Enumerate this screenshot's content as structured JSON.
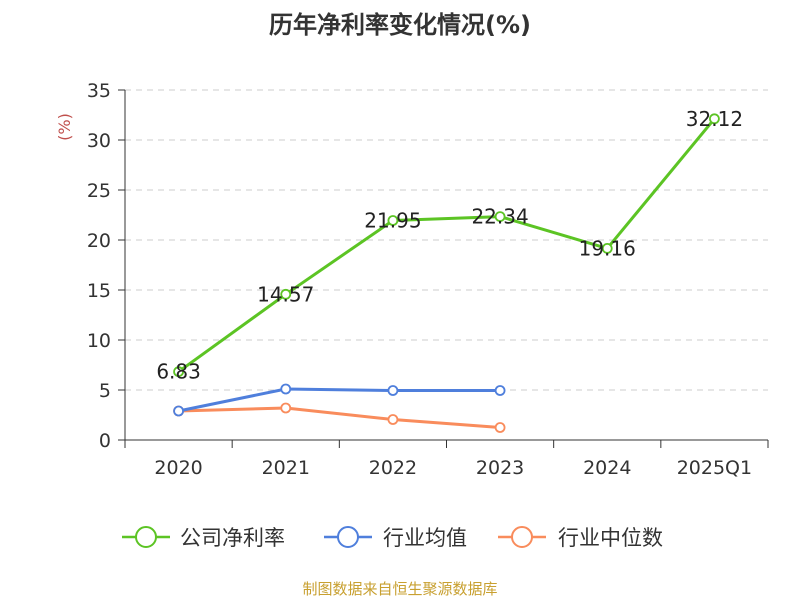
{
  "chart_data": {
    "type": "line",
    "title": "历年净利率变化情况(%)",
    "ylabel": "(%)",
    "xlabel": "",
    "categories": [
      "2020",
      "2021",
      "2022",
      "2023",
      "2024",
      "2025Q1"
    ],
    "ylim": [
      0,
      35
    ],
    "yticks": [
      0,
      5,
      10,
      15,
      20,
      25,
      30,
      35
    ],
    "grid": "horizontal dashed",
    "legend_position": "bottom",
    "series": [
      {
        "name": "公司净利率",
        "color": "#5cc424",
        "values": [
          6.83,
          14.57,
          21.95,
          22.34,
          19.16,
          32.12
        ],
        "labels": [
          "6.83",
          "14.57",
          "21.95",
          "22.34",
          "19.16",
          "32.12"
        ]
      },
      {
        "name": "行业均值",
        "color": "#4f7fdc",
        "values": [
          2.9,
          5.1,
          4.95,
          4.95,
          null,
          null
        ]
      },
      {
        "name": "行业中位数",
        "color": "#f98c5c",
        "values": [
          2.9,
          3.2,
          2.05,
          1.25,
          null,
          null
        ]
      }
    ]
  },
  "footer": "制图数据来自恒生聚源数据库"
}
